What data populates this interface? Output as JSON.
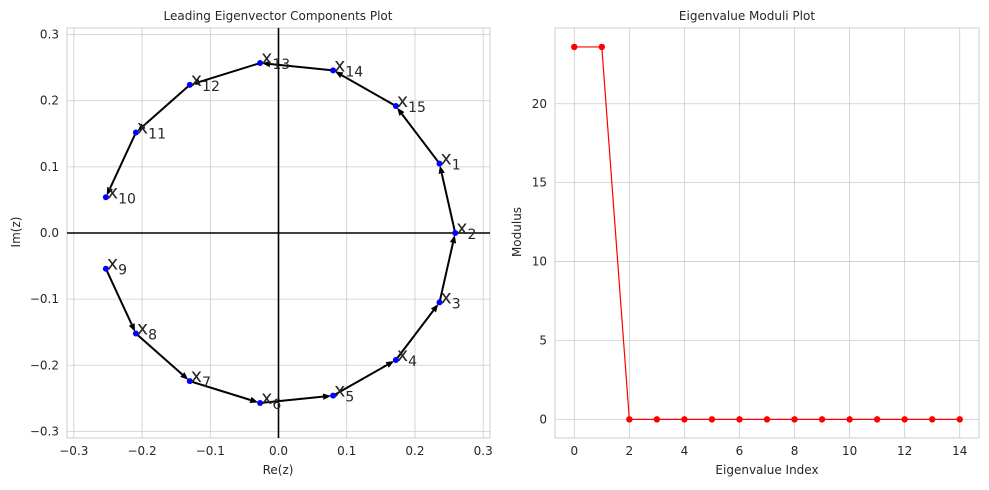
{
  "chart_data": [
    {
      "type": "scatter",
      "title": "Leading Eigenvector Components Plot",
      "xlabel": "Re(z)",
      "ylabel": "Im(z)",
      "xlim": [
        -0.31,
        0.31
      ],
      "ylim": [
        -0.31,
        0.31
      ],
      "grid": true,
      "xticks": [
        -0.3,
        -0.2,
        -0.1,
        0.0,
        0.1,
        0.2,
        0.3
      ],
      "yticks": [
        -0.3,
        -0.2,
        -0.1,
        0.0,
        0.1,
        0.2,
        0.3
      ],
      "xtick_labels": [
        "−0.3",
        "−0.2",
        "−0.1",
        "0.0",
        "0.1",
        "0.2",
        "0.3"
      ],
      "ytick_labels": [
        "−0.3",
        "−0.2",
        "−0.1",
        "0.0",
        "0.1",
        "0.2",
        "0.3"
      ],
      "points": [
        {
          "label": "x",
          "sub": "1",
          "x": 0.236,
          "y": 0.105
        },
        {
          "label": "x",
          "sub": "2",
          "x": 0.259,
          "y": 0.0
        },
        {
          "label": "x",
          "sub": "3",
          "x": 0.236,
          "y": -0.105
        },
        {
          "label": "x",
          "sub": "4",
          "x": 0.172,
          "y": -0.192
        },
        {
          "label": "x",
          "sub": "5",
          "x": 0.08,
          "y": -0.246
        },
        {
          "label": "x",
          "sub": "6",
          "x": -0.027,
          "y": -0.257
        },
        {
          "label": "x",
          "sub": "7",
          "x": -0.13,
          "y": -0.224
        },
        {
          "label": "x",
          "sub": "8",
          "x": -0.209,
          "y": -0.152
        },
        {
          "label": "x",
          "sub": "9",
          "x": -0.253,
          "y": -0.054
        },
        {
          "label": "x",
          "sub": "10",
          "x": -0.253,
          "y": 0.054
        },
        {
          "label": "x",
          "sub": "11",
          "x": -0.209,
          "y": 0.152
        },
        {
          "label": "x",
          "sub": "12",
          "x": -0.13,
          "y": 0.224
        },
        {
          "label": "x",
          "sub": "13",
          "x": -0.027,
          "y": 0.257
        },
        {
          "label": "x",
          "sub": "14",
          "x": 0.08,
          "y": 0.246
        },
        {
          "label": "x",
          "sub": "15",
          "x": 0.172,
          "y": 0.192
        }
      ],
      "arrows": [
        [
          1,
          0
        ],
        [
          0,
          14
        ],
        [
          14,
          13
        ],
        [
          13,
          12
        ],
        [
          12,
          11
        ],
        [
          11,
          10
        ],
        [
          10,
          9
        ],
        [
          8,
          7
        ],
        [
          7,
          6
        ],
        [
          6,
          5
        ],
        [
          5,
          4
        ],
        [
          4,
          3
        ],
        [
          3,
          2
        ],
        [
          2,
          1
        ]
      ],
      "point_color": "#0000ff",
      "arrow_color": "#000000"
    },
    {
      "type": "line",
      "title": "Eigenvalue Moduli Plot",
      "xlabel": "Eigenvalue Index",
      "ylabel": "Modulus",
      "xlim": [
        -0.7,
        14.7
      ],
      "ylim": [
        -1.18,
        24.8
      ],
      "grid": true,
      "xticks": [
        0,
        2,
        4,
        6,
        8,
        10,
        12,
        14
      ],
      "yticks": [
        0,
        5,
        10,
        15,
        20
      ],
      "x": [
        0,
        1,
        2,
        3,
        4,
        5,
        6,
        7,
        8,
        9,
        10,
        11,
        12,
        13,
        14
      ],
      "y": [
        23.6,
        23.6,
        0,
        0,
        0,
        0,
        0,
        0,
        0,
        0,
        0,
        0,
        0,
        0,
        0
      ],
      "color": "#ff0000"
    }
  ]
}
